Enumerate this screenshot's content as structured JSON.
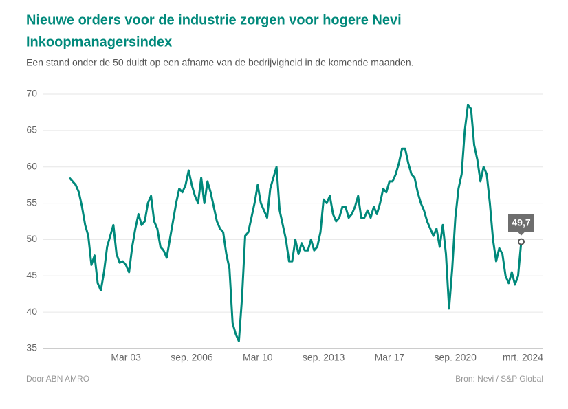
{
  "chart_data": {
    "type": "line",
    "title": "Nieuwe orders voor de industrie zorgen voor hogere Nevi Inkoopmanagersindex",
    "subtitle": "Een stand onder de 50 duidt op een afname van de bedrijvigheid in de komende maanden.",
    "credit": "Door ABN AMRO",
    "source": "Bron: Nevi / S&P Global",
    "color": "#00897b",
    "categories": [
      null,
      null,
      null,
      null,
      null,
      null,
      null,
      null,
      null,
      null,
      null,
      null,
      null,
      null,
      null,
      null,
      null,
      null,
      "Mar 03",
      null,
      null,
      null,
      null,
      null,
      null,
      null,
      null,
      null,
      null,
      null,
      null,
      null,
      null,
      null,
      null,
      null,
      null,
      null,
      null,
      "sep. 2006",
      null,
      null,
      null,
      null,
      null,
      null,
      null,
      null,
      null,
      null,
      null,
      null,
      null,
      null,
      null,
      null,
      null,
      null,
      null,
      null,
      "Mar 10",
      null,
      null,
      null,
      null,
      null,
      null,
      null,
      null,
      null,
      null,
      null,
      null,
      null,
      null,
      null,
      null,
      null,
      null,
      null,
      null,
      "sep. 2013",
      null,
      null,
      null,
      null,
      null,
      null,
      null,
      null,
      null,
      null,
      null,
      null,
      null,
      null,
      null,
      null,
      null,
      null,
      null,
      null,
      "Mar 17",
      null,
      null,
      null,
      null,
      null,
      null,
      null,
      null,
      null,
      null,
      null,
      null,
      null,
      null,
      null,
      null,
      null,
      null,
      null,
      null,
      "sep. 2020",
      null,
      null,
      null,
      null,
      null,
      null,
      null,
      null,
      null,
      null,
      null,
      null,
      null,
      null,
      null,
      null,
      null,
      null,
      null,
      null,
      "mrt. 2024"
    ],
    "values": [
      58.5,
      58,
      57.5,
      56.5,
      54.5,
      52,
      50.5,
      46.5,
      47.8,
      44,
      43,
      45.5,
      49,
      50.5,
      52,
      48,
      46.8,
      47,
      46.5,
      45.5,
      49,
      51.5,
      53.5,
      52,
      52.5,
      55,
      56,
      52.5,
      51.5,
      49,
      48.5,
      47.5,
      50,
      52.5,
      55,
      57,
      56.5,
      57.5,
      59.5,
      57.5,
      56,
      55,
      58.5,
      55,
      58,
      56.5,
      54.5,
      52.5,
      51.5,
      51,
      48,
      46,
      38.5,
      37,
      36,
      42,
      50.5,
      51,
      53,
      55,
      57.5,
      55,
      54,
      53,
      57,
      58.5,
      60,
      54,
      52,
      50,
      47,
      47,
      50,
      48,
      49.5,
      48.5,
      48.5,
      50,
      48.5,
      49,
      51,
      55.5,
      55,
      56,
      53.5,
      52.5,
      53,
      54.5,
      54.5,
      53,
      53.5,
      54.5,
      56,
      53,
      53,
      54,
      53,
      54.5,
      53.5,
      55,
      57,
      56.5,
      58,
      58,
      59,
      60.5,
      62.5,
      62.5,
      60.5,
      59,
      58.5,
      56.5,
      55,
      54,
      52.5,
      51.5,
      50.5,
      51.5,
      49,
      52,
      48,
      40.5,
      46,
      53,
      57,
      59,
      65,
      68.5,
      68,
      63,
      61,
      58,
      60,
      59,
      55,
      50,
      47,
      48.8,
      48,
      45,
      44,
      45.5,
      43.8,
      45,
      49.7
    ],
    "value_labels": [
      null,
      null,
      null,
      null,
      null,
      null,
      null,
      null,
      null,
      null,
      null,
      null,
      null,
      null,
      null,
      null,
      null,
      null,
      null,
      null,
      null,
      null,
      null,
      null,
      null,
      null,
      null,
      null,
      null,
      null,
      null,
      null,
      null,
      null,
      null,
      null,
      null,
      null,
      null,
      null,
      null,
      null,
      null,
      null,
      null,
      null,
      null,
      null,
      null,
      null,
      null,
      null,
      null,
      null,
      null,
      null,
      null,
      null,
      null,
      null,
      null,
      null,
      null,
      null,
      null,
      null,
      null,
      null,
      null,
      null,
      null,
      null,
      null,
      null,
      null,
      null,
      null,
      null,
      null,
      null,
      null,
      null,
      null,
      null,
      null,
      null,
      null,
      null,
      null,
      null,
      null,
      null,
      null,
      null,
      null,
      null,
      null,
      null,
      null,
      null,
      null,
      null,
      null,
      null,
      null,
      null,
      null,
      null,
      null,
      null,
      null,
      null,
      null,
      null,
      null,
      null,
      null,
      null,
      null,
      null,
      null,
      null,
      null,
      null,
      null,
      null,
      null,
      null,
      null,
      null,
      null,
      null,
      null,
      null,
      null,
      null,
      null,
      null,
      null,
      null,
      null,
      null,
      null,
      null,
      "49,7"
    ],
    "ylim": [
      35,
      70
    ],
    "yticks": [
      35,
      40,
      45,
      50,
      55,
      60,
      65,
      70
    ],
    "grid": true
  }
}
